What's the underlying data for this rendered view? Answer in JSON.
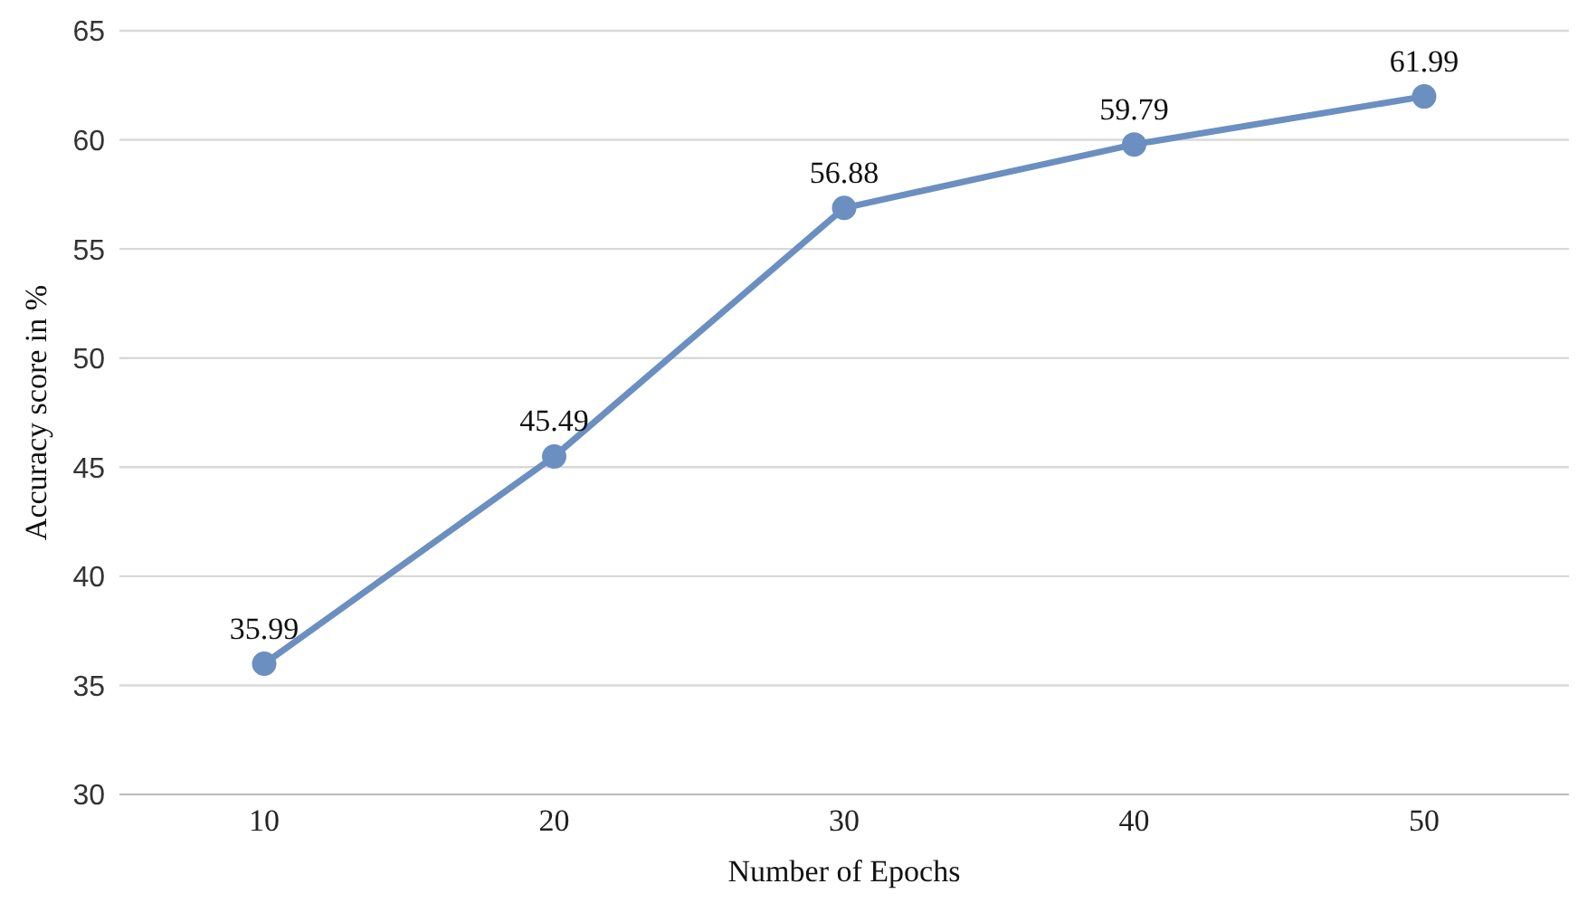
{
  "chart_data": {
    "type": "line",
    "xlabel": "Number of Epochs",
    "ylabel": "Accuracy score in %",
    "categories": [
      "10",
      "20",
      "30",
      "40",
      "50"
    ],
    "series": [
      {
        "color": "#6b8fc0",
        "values": [
          35.99,
          45.49,
          56.88,
          59.79,
          61.99
        ]
      }
    ],
    "ylim": [
      30,
      65
    ],
    "yticks": [
      30,
      35,
      40,
      45,
      50,
      55,
      60,
      65
    ],
    "grid": "y",
    "marker": "circle",
    "line_style": "solid",
    "data_labels": true,
    "legend": false
  }
}
